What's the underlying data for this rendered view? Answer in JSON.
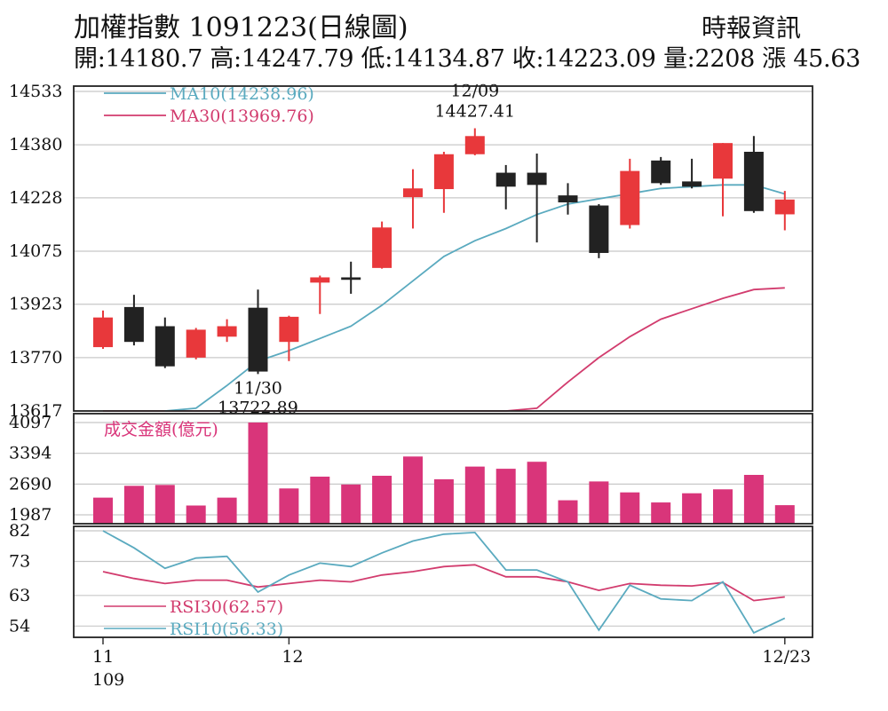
{
  "header": {
    "title": "加權指數 1091223(日線圖)",
    "source": "時報資訊",
    "ohlc": "開:14180.7 高:14247.79 低:14134.87 收:14223.09 量:2208 漲 45.63"
  },
  "colors": {
    "up": "#e8383b",
    "down": "#222222",
    "ma10": "#5aaabf",
    "ma30": "#d23c6e",
    "volume": "#d9357a",
    "grid": "#c8c8c8"
  },
  "chart_data": [
    {
      "type": "candlestick",
      "y_ticks": [
        14533,
        14380,
        14228,
        14075,
        13923,
        13770,
        13617
      ],
      "ylim": [
        13617,
        14533
      ],
      "candles": [
        {
          "open": 13800,
          "close": 13885,
          "high": 13905,
          "low": 13795
        },
        {
          "open": 13915,
          "close": 13815,
          "high": 13950,
          "low": 13805
        },
        {
          "open": 13860,
          "close": 13745,
          "high": 13885,
          "low": 13740
        },
        {
          "open": 13770,
          "close": 13850,
          "high": 13855,
          "low": 13765
        },
        {
          "open": 13830,
          "close": 13860,
          "high": 13880,
          "low": 13815
        },
        {
          "open": 13913,
          "close": 13730,
          "high": 13965,
          "low": 13722.89
        },
        {
          "open": 13815,
          "close": 13887,
          "high": 13890,
          "low": 13760
        },
        {
          "open": 13985,
          "close": 14000,
          "high": 14005,
          "low": 13895
        },
        {
          "open": 14000,
          "close": 13993,
          "high": 14045,
          "low": 13953
        },
        {
          "open": 14027,
          "close": 14143,
          "high": 14160,
          "low": 14025
        },
        {
          "open": 14230,
          "close": 14255,
          "high": 14310,
          "low": 14140
        },
        {
          "open": 14253,
          "close": 14353,
          "high": 14360,
          "low": 14185
        },
        {
          "open": 14353,
          "close": 14405,
          "high": 14427.41,
          "low": 14350
        },
        {
          "open": 14300,
          "close": 14260,
          "high": 14322,
          "low": 14195
        },
        {
          "open": 14300,
          "close": 14265,
          "high": 14355,
          "low": 14100
        },
        {
          "open": 14235,
          "close": 14215,
          "high": 14270,
          "low": 14180
        },
        {
          "open": 14206,
          "close": 14070,
          "high": 14210,
          "low": 14055
        },
        {
          "open": 14150,
          "close": 14305,
          "high": 14340,
          "low": 14140
        },
        {
          "open": 14335,
          "close": 14270,
          "high": 14345,
          "low": 14265
        },
        {
          "open": 14275,
          "close": 14260,
          "high": 14340,
          "low": 14255
        },
        {
          "open": 14283,
          "close": 14385,
          "high": 14385,
          "low": 14175
        },
        {
          "open": 14360,
          "close": 14190,
          "high": 14405,
          "low": 14185
        },
        {
          "open": 14180.7,
          "close": 14223.09,
          "high": 14247.79,
          "low": 14134.87
        }
      ],
      "ma10": [
        null,
        null,
        13617,
        13625,
        13690,
        13760,
        13790,
        13825,
        13860,
        13920,
        13990,
        14060,
        14105,
        14140,
        14180,
        14210,
        14225,
        14240,
        14255,
        14260,
        14265,
        14265,
        14239
      ],
      "ma30": [
        13617,
        13617,
        13617,
        13617,
        13617,
        13617,
        13617,
        13617,
        13617,
        13617,
        13617,
        13617,
        13617,
        13617,
        13625,
        13700,
        13770,
        13830,
        13880,
        13910,
        13940,
        13965,
        13970
      ],
      "legend": [
        {
          "name": "MA10(14238.96)",
          "series": "ma10"
        },
        {
          "name": "MA30(13969.76)",
          "series": "ma30"
        }
      ],
      "annotations": [
        {
          "label_date": "12/09",
          "label_value": "14427.41",
          "index": 12,
          "position": "above"
        },
        {
          "label_date": "11/30",
          "label_value": "13722.89",
          "index": 5,
          "position": "below"
        }
      ]
    },
    {
      "type": "bar",
      "title": "成交金額(億元)",
      "y_ticks": [
        4097,
        3394,
        2690,
        1987
      ],
      "ylim": [
        1987,
        4097
      ],
      "values": [
        2380,
        2650,
        2670,
        2200,
        2380,
        4097,
        2590,
        2860,
        2680,
        2880,
        3320,
        2800,
        3090,
        3040,
        3200,
        2320,
        2750,
        2500,
        2270,
        2480,
        2570,
        2900,
        2208
      ]
    },
    {
      "type": "line",
      "y_ticks": [
        82,
        73,
        63,
        54
      ],
      "ylim": [
        52,
        82
      ],
      "rsi10": [
        82,
        77,
        71,
        74,
        74.5,
        64,
        69,
        72.5,
        71.5,
        75.5,
        79,
        81,
        81.5,
        70.5,
        70.5,
        67,
        52.8,
        66,
        62,
        61.5,
        67,
        52,
        56.33
      ],
      "rsi30": [
        70,
        68,
        66.5,
        67.5,
        67.5,
        65.5,
        66.5,
        67.5,
        67,
        69,
        70,
        71.5,
        72,
        68.5,
        68.5,
        67,
        64.5,
        66.5,
        66,
        65.8,
        66.8,
        61.5,
        62.57
      ],
      "legend": [
        {
          "name": "RSI30(62.57)",
          "series": "rsi30"
        },
        {
          "name": "RSI10(56.33)",
          "series": "rsi10"
        }
      ]
    }
  ],
  "x_axis": {
    "labels": [
      {
        "text": "11",
        "index": 0
      },
      {
        "text": "109",
        "index": 0,
        "line": 2
      },
      {
        "text": "12",
        "index": 6
      },
      {
        "text": "12/23",
        "index": 22
      }
    ]
  }
}
